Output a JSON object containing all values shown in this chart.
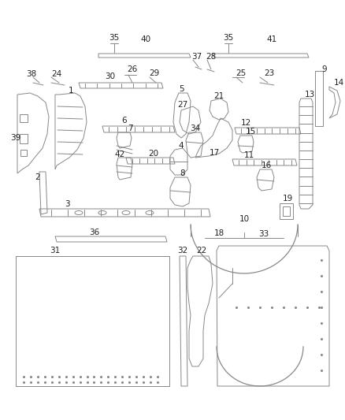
{
  "bg_color": "#ffffff",
  "line_color": "#888888",
  "text_color": "#222222",
  "fig_width": 4.38,
  "fig_height": 5.33,
  "dpi": 100
}
